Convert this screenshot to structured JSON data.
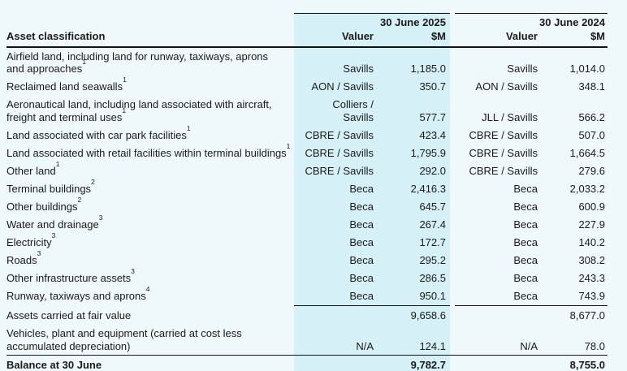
{
  "colors": {
    "page_background": "#eff9fc",
    "highlight_band": "#d6f0f8",
    "rule_lines": "#131417",
    "text": "#1a1a1a"
  },
  "table": {
    "label_header": "Asset classification",
    "groups": [
      {
        "period": "30 June 2025",
        "valuer_header": "Valuer",
        "amount_header": "$M"
      },
      {
        "period": "30 June 2024",
        "valuer_header": "Valuer",
        "amount_header": "$M"
      }
    ],
    "rows": [
      {
        "label": "Airfield land, including land for runway, taxiways, aprons\nand approaches",
        "sup": "1",
        "v2025": "Savills",
        "m2025": "1,185.0",
        "v2024": "Savills",
        "m2024": "1,014.0"
      },
      {
        "label": "Reclaimed land seawalls",
        "sup": "1",
        "v2025": "AON / Savills",
        "m2025": "350.7",
        "v2024": "AON / Savills",
        "m2024": "348.1"
      },
      {
        "label": "Aeronautical land, including land associated with aircraft,\nfreight and terminal uses",
        "sup": "1",
        "v2025": "Colliers /\nSavills",
        "m2025": "577.7",
        "v2024": "JLL / Savills",
        "m2024": "566.2"
      },
      {
        "label": "Land associated with car park facilities",
        "sup": "1",
        "v2025": "CBRE / Savills",
        "m2025": "423.4",
        "v2024": "CBRE / Savills",
        "m2024": "507.0"
      },
      {
        "label": "Land associated with retail facilities within terminal buildings",
        "sup": "1",
        "v2025": "CBRE / Savills",
        "m2025": "1,795.9",
        "v2024": "CBRE / Savills",
        "m2024": "1,664.5"
      },
      {
        "label": "Other land",
        "sup": "1",
        "v2025": "CBRE / Savills",
        "m2025": "292.0",
        "v2024": "CBRE / Savills",
        "m2024": "279.6"
      },
      {
        "label": "Terminal buildings",
        "sup": "2",
        "v2025": "Beca",
        "m2025": "2,416.3",
        "v2024": "Beca",
        "m2024": "2,033.2"
      },
      {
        "label": "Other buildings",
        "sup": "2",
        "v2025": "Beca",
        "m2025": "645.7",
        "v2024": "Beca",
        "m2024": "600.9"
      },
      {
        "label": "Water and drainage",
        "sup": "3",
        "v2025": "Beca",
        "m2025": "267.4",
        "v2024": "Beca",
        "m2024": "227.9"
      },
      {
        "label": "Electricity",
        "sup": "3",
        "v2025": "Beca",
        "m2025": "172.7",
        "v2024": "Beca",
        "m2024": "140.2"
      },
      {
        "label": "Roads",
        "sup": "3",
        "v2025": "Beca",
        "m2025": "295.2",
        "v2024": "Beca",
        "m2024": "308.2"
      },
      {
        "label": "Other infrastructure assets",
        "sup": "3",
        "v2025": "Beca",
        "m2025": "286.5",
        "v2024": "Beca",
        "m2024": "243.3"
      },
      {
        "label": "Runway, taxiways and aprons",
        "sup": "4",
        "v2025": "Beca",
        "m2025": "950.1",
        "v2024": "Beca",
        "m2024": "743.9"
      },
      {
        "label": "Assets carried at fair value",
        "sup": "",
        "v2025": "",
        "m2025": "9,658.6",
        "v2024": "",
        "m2024": "8,677.0",
        "line_above": "cols"
      },
      {
        "label": "Vehicles, plant and equipment (carried at cost less\naccumulated depreciation)",
        "sup": "",
        "v2025": "N/A",
        "m2025": "124.1",
        "v2024": "N/A",
        "m2024": "78.0"
      },
      {
        "label": "Balance at 30 June",
        "sup": "",
        "v2025": "",
        "m2025": "9,782.7",
        "v2024": "",
        "m2024": "8,755.0",
        "bold": true,
        "line_above": "full",
        "balance": true
      }
    ]
  }
}
